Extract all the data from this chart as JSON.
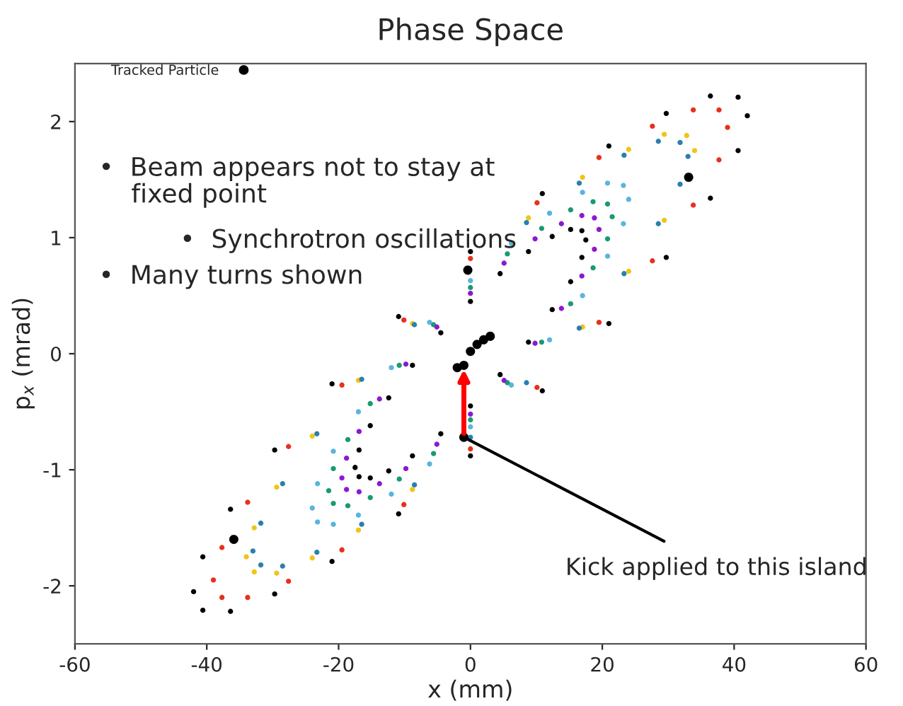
{
  "chart_data": {
    "type": "scatter",
    "title": "Phase Space",
    "xlabel": "x (mm)",
    "ylabel": "p$_{x}$ (mrad)",
    "xlim": [
      -60,
      60
    ],
    "xticks": [
      -60,
      -40,
      -20,
      0,
      20,
      40,
      60
    ],
    "ylim": [
      -2.5,
      2.5
    ],
    "yticks": [
      -2,
      -1,
      0,
      1,
      2
    ],
    "grid": false,
    "legend": "top left",
    "marker": "circle",
    "series": [
      {
        "color": "#000000",
        "x": [
          42,
          40.6,
          36.4,
          29.7,
          21,
          10.9,
          0,
          -10.9,
          -21,
          -29.7,
          -36.4,
          -40.6,
          -42,
          -40.6,
          -36.4,
          -29.7,
          -21,
          -10.9,
          0,
          10.9,
          21,
          29.7,
          36.4,
          40.6
        ],
        "values": [
          2.05,
          2.21,
          2.22,
          2.07,
          1.79,
          1.38,
          0.88,
          0.32,
          -0.26,
          -0.83,
          -1.34,
          -1.75,
          -2.05,
          -2.21,
          -2.22,
          -2.07,
          -1.79,
          -1.38,
          -0.88,
          -0.32,
          0.26,
          0.83,
          1.34,
          1.75
        ]
      },
      {
        "color": "#e8301c",
        "x": [
          39,
          37.7,
          33.8,
          27.6,
          19.5,
          10.1,
          0,
          -10.1,
          -19.5,
          -27.6,
          -33.8,
          -37.7,
          -39,
          -37.7,
          -33.8,
          -27.6,
          -19.5,
          -10.1,
          0,
          10.1,
          19.5,
          27.6,
          33.8,
          37.7
        ],
        "values": [
          1.95,
          2.1,
          2.1,
          1.96,
          1.69,
          1.3,
          0.82,
          0.29,
          -0.27,
          -0.8,
          -1.28,
          -1.67,
          -1.95,
          -2.1,
          -2.1,
          -1.96,
          -1.69,
          -1.3,
          -0.82,
          -0.29,
          0.27,
          0.8,
          1.28,
          1.67
        ]
      },
      {
        "color": "#f0c419",
        "x": [
          34,
          32.8,
          29.4,
          24,
          17,
          8.8,
          0,
          -8.8,
          -17,
          -24,
          -29.4,
          -32.8,
          -34,
          -32.8,
          -29.4,
          -24,
          -17,
          -8.8,
          0,
          8.8,
          17,
          24,
          29.4
        ],
        "values": [
          1.75,
          1.88,
          1.89,
          1.76,
          1.52,
          1.17,
          null,
          0.26,
          -0.23,
          -0.71,
          -1.15,
          -1.5,
          -1.75,
          -1.88,
          -1.89,
          -1.76,
          -1.52,
          -1.17,
          null,
          null,
          0.23,
          0.71,
          1.15
        ]
      },
      {
        "color": "#2a7fb0",
        "x": [
          33,
          31.8,
          28.5,
          23.3,
          16.5,
          8.5,
          0,
          -8.5,
          -16.5,
          -23.3,
          -28.5,
          -31.8,
          -33,
          -31.8,
          -28.5,
          -23.3,
          -16.5,
          -8.5,
          0,
          8.5,
          16.5,
          23.3,
          28.5,
          31.8
        ],
        "values": [
          1.7,
          1.82,
          1.83,
          1.71,
          1.47,
          1.13,
          null,
          0.25,
          -0.22,
          -0.69,
          -1.12,
          -1.46,
          -1.7,
          -1.82,
          -1.83,
          -1.71,
          -1.47,
          -1.13,
          -0.72,
          -0.25,
          0.22,
          0.69,
          1.12,
          1.46
        ]
      },
      {
        "color": "#5ab4e0",
        "x": [
          24,
          23.2,
          20.8,
          17,
          12,
          6.2,
          0,
          -6.2,
          -12,
          -17,
          -20.8,
          -23.2,
          -24,
          -23.2,
          -20.8,
          -17,
          -12,
          -6.2,
          0,
          6.2,
          12,
          17,
          20.8,
          23.2
        ],
        "values": [
          1.33,
          1.45,
          1.47,
          1.39,
          1.21,
          0.95,
          0.63,
          0.27,
          -0.12,
          -0.5,
          -0.84,
          -1.12,
          -1.33,
          -1.45,
          -1.47,
          -1.39,
          -1.21,
          -0.95,
          -0.63,
          -0.27,
          0.12,
          0.5,
          0.84,
          1.12
        ]
      },
      {
        "color": "#1a9a70",
        "x": [
          21.5,
          20.8,
          18.6,
          15.2,
          10.8,
          5.6,
          0,
          -5.6,
          -10.8,
          -15.2,
          -18.6,
          -20.8,
          -21.5,
          -20.8,
          -18.6,
          -15.2,
          -10.8,
          -5.6,
          0,
          5.6,
          10.8,
          15.2,
          18.6,
          20.8
        ],
        "values": [
          1.18,
          1.29,
          1.31,
          1.24,
          1.08,
          0.86,
          0.57,
          0.25,
          -0.1,
          -0.43,
          -0.74,
          -0.99,
          -1.18,
          -1.29,
          -1.31,
          -1.24,
          -1.08,
          -0.86,
          -0.57,
          -0.25,
          0.1,
          0.43,
          0.74,
          0.99
        ]
      },
      {
        "color": "#8a1ad0",
        "x": [
          19.5,
          18.8,
          16.9,
          13.8,
          9.8,
          5.1,
          0,
          -5.1,
          -9.8,
          -13.8,
          -16.9,
          -18.8,
          -19.5,
          -18.8,
          -16.9,
          -13.8,
          -9.8,
          -5.1,
          0,
          5.1,
          9.8,
          13.8,
          16.9,
          18.8
        ],
        "values": [
          1.07,
          1.17,
          1.19,
          1.12,
          0.99,
          0.78,
          0.52,
          0.23,
          -0.09,
          -0.39,
          -0.67,
          -0.9,
          -1.07,
          -1.17,
          -1.19,
          -1.12,
          -0.99,
          -0.78,
          -0.52,
          -0.23,
          0.09,
          0.39,
          0.67,
          0.9
        ]
      },
      {
        "color": "#000000",
        "x": [
          17.5,
          16.9,
          15.2,
          12.4,
          8.8,
          4.5,
          0,
          -4.5,
          -8.8,
          -12.4,
          -15.2,
          -16.9,
          -17.5,
          -16.9,
          -15.2,
          -12.4,
          -8.8,
          -4.5,
          0,
          4.5,
          8.8,
          12.4,
          15.2,
          16.9
        ],
        "values": [
          0.98,
          1.06,
          1.07,
          1.01,
          0.88,
          0.69,
          0.45,
          0.18,
          -0.1,
          -0.38,
          -0.62,
          -0.83,
          -0.98,
          -1.06,
          -1.07,
          -1.01,
          -0.88,
          -0.69,
          -0.45,
          -0.18,
          0.1,
          0.38,
          0.62,
          0.83
        ]
      },
      {
        "name": "Tracked Particle",
        "color": "#000000",
        "x": [
          33.1,
          -35.9,
          -0.4,
          -1,
          -1,
          -2,
          0,
          1,
          2,
          3
        ],
        "values": [
          1.52,
          -1.6,
          0.72,
          -0.72,
          -0.1,
          -0.12,
          0.02,
          0.08,
          0.12,
          0.15
        ]
      }
    ],
    "annotations": [
      "•  Beam appears not to stay at\n    fixed point",
      "          •  Synchrotron oscillations",
      "•  Many turns shown",
      {
        "text": "Kick applied to this island",
        "x": -1,
        "y": -0.72
      }
    ]
  }
}
